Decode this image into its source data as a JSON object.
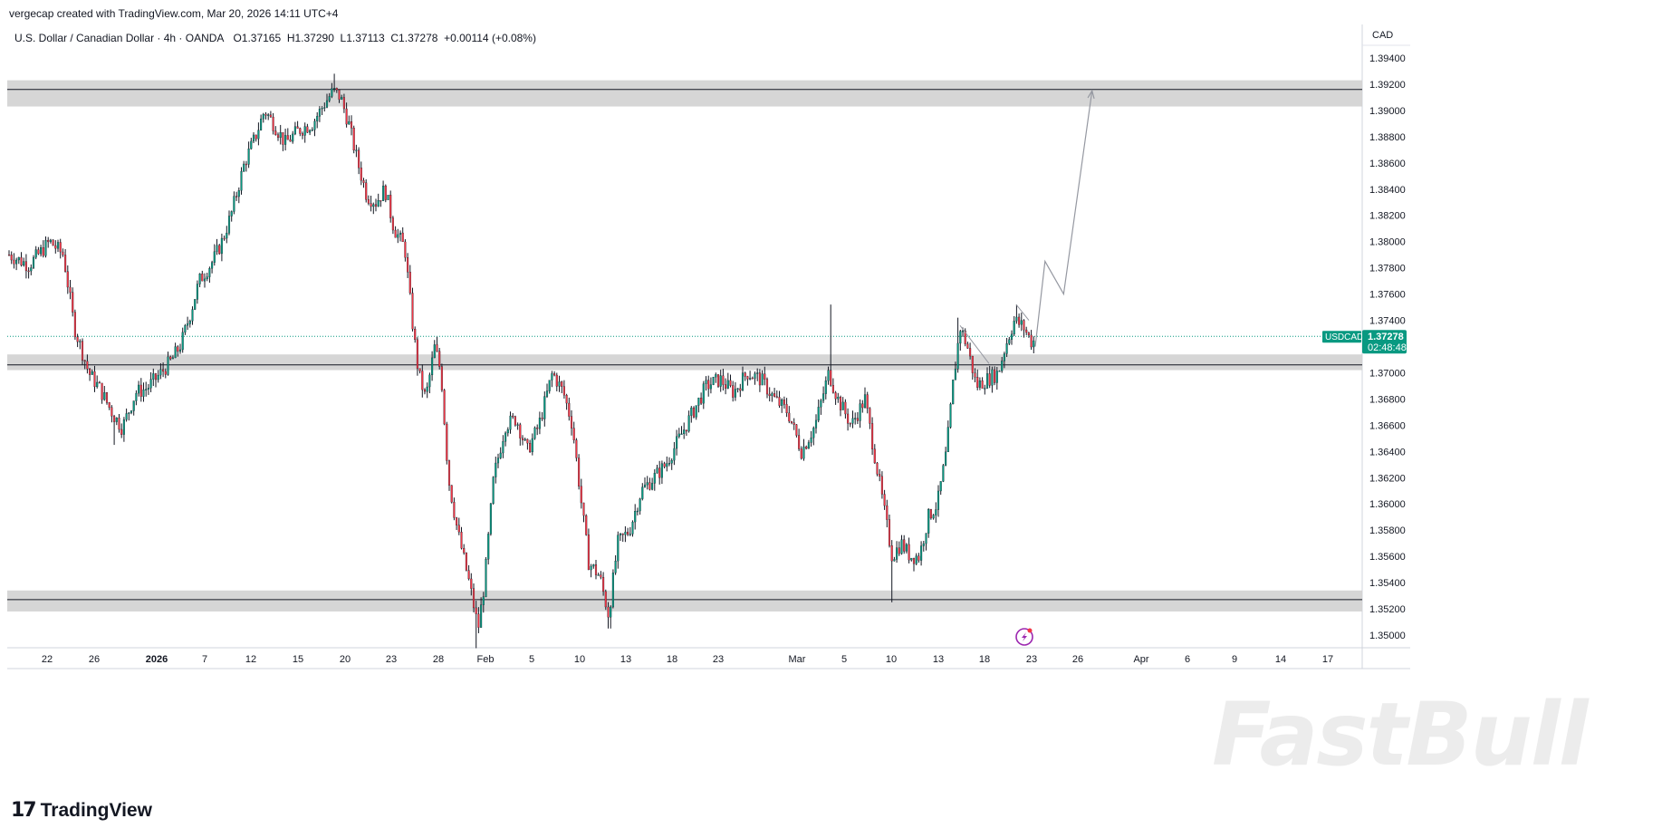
{
  "header": {
    "credit": "vergecap created with TradingView.com, Mar 20, 2026 14:11 UTC+4",
    "symbol_desc": "U.S. Dollar / Canadian Dollar · 4h · OANDA",
    "open": "O1.37165",
    "high": "H1.37290",
    "low": "L1.37113",
    "close": "C1.37278",
    "change": "+0.00114 (+0.08%)"
  },
  "price_axis": {
    "currency": "CAD",
    "ticks": [
      "1.39400",
      "1.39200",
      "1.39000",
      "1.38800",
      "1.38600",
      "1.38400",
      "1.38200",
      "1.38000",
      "1.37800",
      "1.37600",
      "1.37400",
      "1.37000",
      "1.36800",
      "1.36600",
      "1.36400",
      "1.36200",
      "1.36000",
      "1.35800",
      "1.35600",
      "1.35400",
      "1.35200",
      "1.35000"
    ],
    "badge_symbol": "USDCAD",
    "badge_price": "1.37278",
    "badge_countdown": "02:48:48",
    "up_color": "#089981",
    "down_color": "#f23645"
  },
  "time_axis": {
    "labels": [
      {
        "text": "22",
        "bold": false
      },
      {
        "text": "26",
        "bold": false
      },
      {
        "text": "2026",
        "bold": true
      },
      {
        "text": "7",
        "bold": false
      },
      {
        "text": "12",
        "bold": false
      },
      {
        "text": "15",
        "bold": false
      },
      {
        "text": "20",
        "bold": false
      },
      {
        "text": "23",
        "bold": false
      },
      {
        "text": "28",
        "bold": false
      },
      {
        "text": "Feb",
        "bold": false
      },
      {
        "text": "5",
        "bold": false
      },
      {
        "text": "10",
        "bold": false
      },
      {
        "text": "13",
        "bold": false
      },
      {
        "text": "18",
        "bold": false
      },
      {
        "text": "23",
        "bold": false
      },
      {
        "text": "Mar",
        "bold": false
      },
      {
        "text": "5",
        "bold": false
      },
      {
        "text": "10",
        "bold": false
      },
      {
        "text": "13",
        "bold": false
      },
      {
        "text": "18",
        "bold": false
      },
      {
        "text": "23",
        "bold": false
      },
      {
        "text": "26",
        "bold": false
      },
      {
        "text": "Apr",
        "bold": false
      },
      {
        "text": "6",
        "bold": false
      },
      {
        "text": "9",
        "bold": false
      },
      {
        "text": "14",
        "bold": false
      },
      {
        "text": "17",
        "bold": false
      }
    ]
  },
  "branding": {
    "logo_mark": "17",
    "logo_text": "TradingView",
    "watermark": "FastBull"
  },
  "chart_data": {
    "type": "candlestick",
    "symbol": "USDCAD",
    "interval": "4h",
    "ylim": [
      1.3488,
      1.3945
    ],
    "current_price": 1.37278,
    "zones": [
      {
        "low": 1.3903,
        "high": 1.3923,
        "line": 1.3916
      },
      {
        "low": 1.3702,
        "high": 1.3714,
        "line": 1.3706
      },
      {
        "low": 1.3518,
        "high": 1.3534,
        "line": 1.3527
      }
    ],
    "trace": [
      [
        0,
        1.379
      ],
      [
        22,
        1.3782
      ],
      [
        45,
        1.38
      ],
      [
        60,
        1.379
      ],
      [
        72,
        1.3735
      ],
      [
        88,
        1.37
      ],
      [
        100,
        1.3688
      ],
      [
        115,
        1.3668
      ],
      [
        125,
        1.3658
      ],
      [
        140,
        1.3685
      ],
      [
        152,
        1.3688
      ],
      [
        168,
        1.37
      ],
      [
        180,
        1.371
      ],
      [
        190,
        1.3722
      ],
      [
        200,
        1.3745
      ],
      [
        210,
        1.377
      ],
      [
        225,
        1.3785
      ],
      [
        235,
        1.38
      ],
      [
        245,
        1.382
      ],
      [
        260,
        1.386
      ],
      [
        272,
        1.388
      ],
      [
        282,
        1.39
      ],
      [
        292,
        1.389
      ],
      [
        305,
        1.3875
      ],
      [
        320,
        1.3885
      ],
      [
        335,
        1.389
      ],
      [
        348,
        1.3905
      ],
      [
        358,
        1.3915
      ],
      [
        366,
        1.391
      ],
      [
        375,
        1.389
      ],
      [
        385,
        1.386
      ],
      [
        395,
        1.3835
      ],
      [
        405,
        1.383
      ],
      [
        415,
        1.384
      ],
      [
        425,
        1.381
      ],
      [
        437,
        1.3795
      ],
      [
        445,
        1.374
      ],
      [
        452,
        1.37
      ],
      [
        460,
        1.368
      ],
      [
        470,
        1.372
      ],
      [
        477,
        1.37
      ],
      [
        485,
        1.362
      ],
      [
        495,
        1.358
      ],
      [
        508,
        1.354
      ],
      [
        518,
        1.3505
      ],
      [
        525,
        1.354
      ],
      [
        535,
        1.362
      ],
      [
        548,
        1.366
      ],
      [
        560,
        1.3665
      ],
      [
        572,
        1.364
      ],
      [
        585,
        1.366
      ],
      [
        600,
        1.37
      ],
      [
        612,
        1.3685
      ],
      [
        622,
        1.366
      ],
      [
        632,
        1.36
      ],
      [
        640,
        1.3555
      ],
      [
        652,
        1.3545
      ],
      [
        662,
        1.3515
      ],
      [
        672,
        1.357
      ],
      [
        685,
        1.358
      ],
      [
        698,
        1.361
      ],
      [
        712,
        1.362
      ],
      [
        725,
        1.363
      ],
      [
        740,
        1.365
      ],
      [
        755,
        1.367
      ],
      [
        770,
        1.369
      ],
      [
        785,
        1.3695
      ],
      [
        800,
        1.3685
      ],
      [
        815,
        1.37
      ],
      [
        830,
        1.3695
      ],
      [
        845,
        1.368
      ],
      [
        860,
        1.367
      ],
      [
        875,
        1.364
      ],
      [
        890,
        1.366
      ],
      [
        905,
        1.37
      ],
      [
        915,
        1.368
      ],
      [
        930,
        1.366
      ],
      [
        945,
        1.368
      ],
      [
        955,
        1.364
      ],
      [
        965,
        1.36
      ],
      [
        975,
        1.356
      ],
      [
        985,
        1.357
      ],
      [
        995,
        1.356
      ],
      [
        1005,
        1.356
      ],
      [
        1015,
        1.359
      ],
      [
        1025,
        1.36
      ],
      [
        1035,
        1.364
      ],
      [
        1042,
        1.369
      ],
      [
        1050,
        1.3735
      ],
      [
        1058,
        1.372
      ],
      [
        1068,
        1.369
      ],
      [
        1080,
        1.3695
      ],
      [
        1092,
        1.37
      ],
      [
        1100,
        1.372
      ],
      [
        1110,
        1.374
      ],
      [
        1120,
        1.3735
      ],
      [
        1130,
        1.3722
      ],
      [
        1133,
        1.3727
      ]
    ],
    "wick_extremes": [
      {
        "x": 360,
        "high": 1.3928
      },
      {
        "x": 908,
        "high": 1.3752
      },
      {
        "x": 115,
        "low": 1.3645
      },
      {
        "x": 515,
        "low": 1.349
      },
      {
        "x": 663,
        "low": 1.3505
      },
      {
        "x": 975,
        "low": 1.3525
      },
      {
        "x": 1048,
        "high": 1.3742
      },
      {
        "x": 1112,
        "high": 1.3752
      }
    ],
    "projection": [
      {
        "date_offset": 0,
        "price": 1.372
      },
      {
        "date_offset": 11,
        "price": 1.3785
      },
      {
        "date_offset": 32,
        "price": 1.376
      },
      {
        "date_offset": 64,
        "price": 1.3915
      }
    ]
  }
}
